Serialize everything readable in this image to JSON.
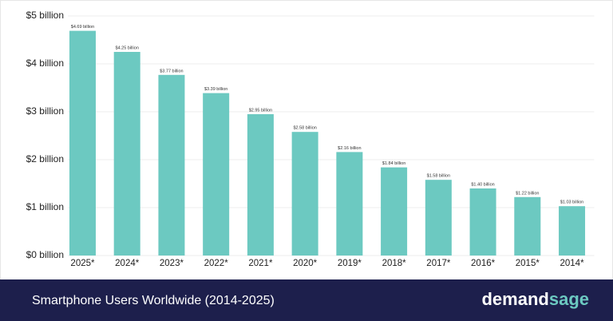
{
  "chart_data": {
    "type": "bar",
    "title": "Smartphone Users Worldwide (2014-2025)",
    "brand_prefix": "demand",
    "brand_suffix": "sage",
    "categories": [
      "2025*",
      "2024*",
      "2023*",
      "2022*",
      "2021*",
      "2020*",
      "2019*",
      "2018*",
      "2017*",
      "2016*",
      "2015*",
      "2014*"
    ],
    "values": [
      4.69,
      4.25,
      3.77,
      3.39,
      2.95,
      2.58,
      2.16,
      1.84,
      1.58,
      1.4,
      1.22,
      1.03
    ],
    "value_labels": [
      "$4.69 billion",
      "$4.25 billion",
      "$3.77 billion",
      "$3.39 billion",
      "$2.95 billion",
      "$2.58 billion",
      "$2.16 billion",
      "$1.84 billion",
      "$1.58 billion",
      "$1.40 billion",
      "$1.22 billion",
      "$1.03 billion"
    ],
    "color": "#6cc9c1",
    "ylim": [
      0,
      5
    ],
    "yticks": [
      {
        "value": 0,
        "label": "$0 billion"
      },
      {
        "value": 1,
        "label": "$1 billion"
      },
      {
        "value": 2,
        "label": "$2 billion"
      },
      {
        "value": 3,
        "label": "$3 billion"
      },
      {
        "value": 4,
        "label": "$4 billion"
      },
      {
        "value": 5,
        "label": "$5 billion"
      }
    ],
    "grid": true
  }
}
